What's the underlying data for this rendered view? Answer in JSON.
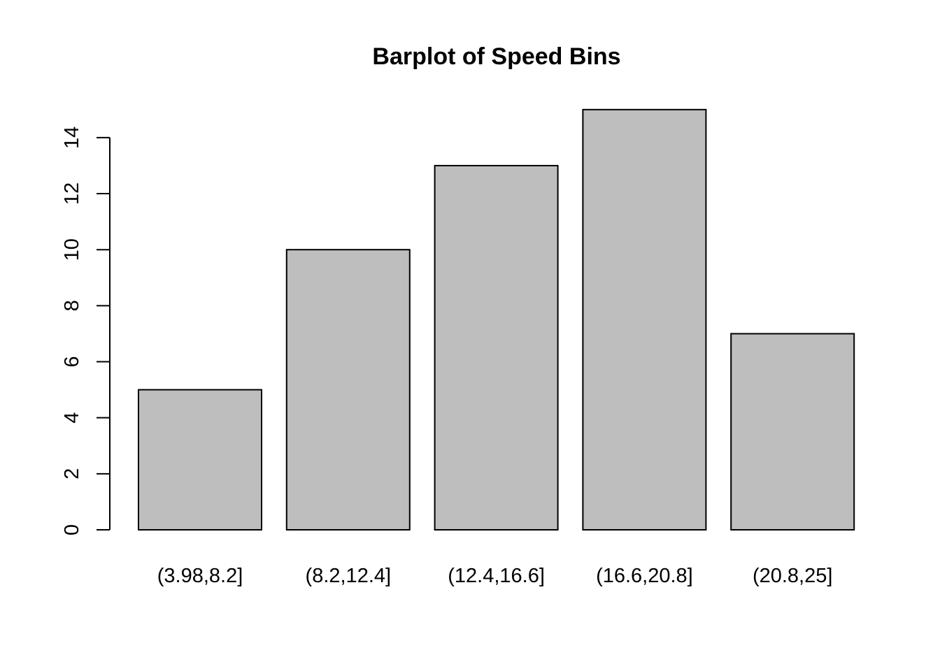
{
  "chart_data": {
    "type": "bar",
    "title": "Barplot of Speed Bins",
    "xlabel": "",
    "ylabel": "",
    "categories": [
      "(3.98,8.2]",
      "(8.2,12.4]",
      "(12.4,16.6]",
      "(16.6,20.8]",
      "(20.8,25]"
    ],
    "values": [
      5,
      10,
      13,
      15,
      7
    ],
    "ylim": [
      0,
      15
    ],
    "yticks": [
      0,
      2,
      4,
      6,
      8,
      10,
      12,
      14
    ],
    "ytick_labels": [
      "0",
      "2",
      "4",
      "6",
      "8",
      "10",
      "12",
      "14"
    ],
    "grid": false,
    "bar_color": "#BEBEBE",
    "border_color": "#000000"
  }
}
